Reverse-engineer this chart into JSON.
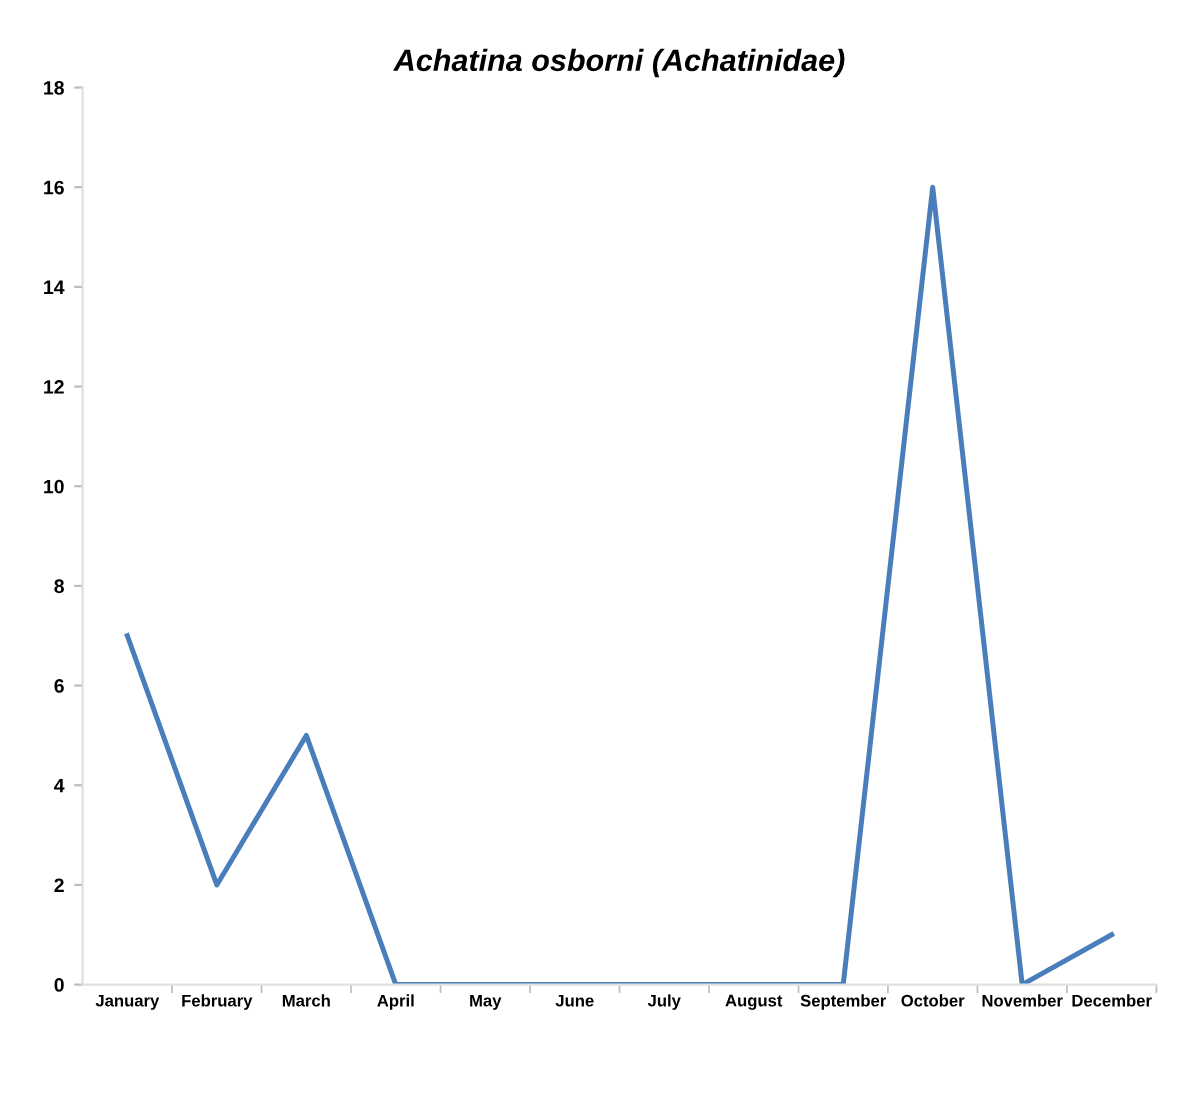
{
  "chart_data": {
    "type": "line",
    "title": "Achatina osborni (Achatinidae)",
    "categories": [
      "January",
      "February",
      "March",
      "April",
      "May",
      "June",
      "July",
      "August",
      "September",
      "October",
      "November",
      "December"
    ],
    "series": [
      {
        "color": "#4a7ebb",
        "values": [
          7,
          2,
          5,
          0,
          0,
          0,
          0,
          0,
          0,
          16,
          0,
          1
        ]
      }
    ],
    "ylim": [
      0,
      18
    ],
    "yticks": [
      0,
      2,
      4,
      6,
      8,
      10,
      12,
      14,
      16,
      18
    ],
    "grid": false,
    "marker": "none",
    "line_style": "solid"
  }
}
